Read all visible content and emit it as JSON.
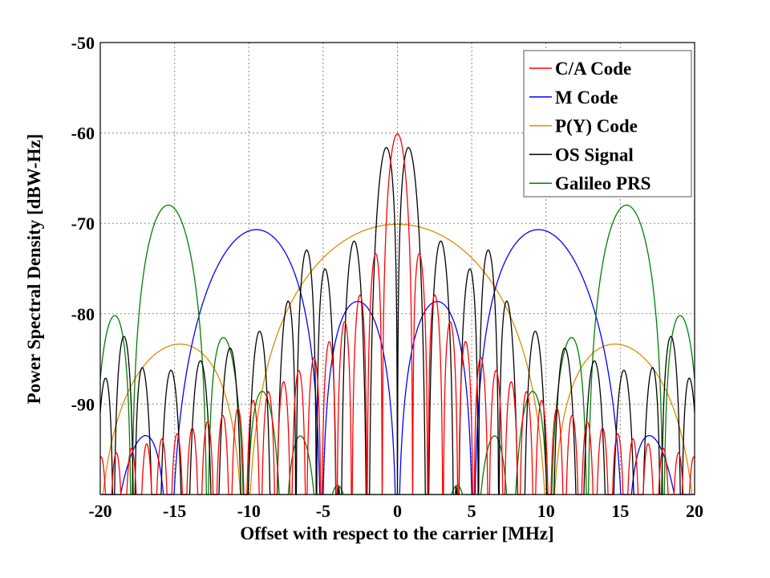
{
  "chart_data": {
    "type": "line",
    "title": "",
    "xlabel": "Offset with respect to the carrier [MHz]",
    "ylabel": "Power Spectral Density [dBW-Hz]",
    "xlim": [
      -20,
      20
    ],
    "ylim": [
      -100,
      -50
    ],
    "xticks": [
      -20,
      -15,
      -10,
      -5,
      0,
      5,
      10,
      15,
      20
    ],
    "yticks": [
      -50,
      -60,
      -70,
      -80,
      -90
    ],
    "grid": true,
    "legend_position": "top-right",
    "series": [
      {
        "name": "C/A Code",
        "color": "#ff0000",
        "main_lobe_peaks": [
          {
            "x": 0,
            "y": -60
          }
        ],
        "first_sidelobe_peak": {
          "x": 1.5,
          "y": -73.5
        }
      },
      {
        "name": "M Code",
        "color": "#0000ff",
        "main_lobe_peaks": [
          {
            "x": -9.5,
            "y": -70.7
          },
          {
            "x": 9.5,
            "y": -70.7
          }
        ],
        "inner_lobe_peaks": [
          {
            "x": -2.5,
            "y": -78.5
          },
          {
            "x": 2.5,
            "y": -78.5
          }
        ]
      },
      {
        "name": "P(Y) Code",
        "color": "#e08a00",
        "main_lobe_peaks": [
          {
            "x": 0,
            "y": -70
          }
        ],
        "first_sidelobe_peak": {
          "x": 14.3,
          "y": -83.3
        }
      },
      {
        "name": "OS Signal",
        "color": "#000000",
        "main_lobe_peaks": [
          {
            "x": -0.9,
            "y": -63.3
          },
          {
            "x": 0.9,
            "y": -63.3
          }
        ],
        "secondary_peaks": [
          {
            "x": -5.5,
            "y": -74.5
          },
          {
            "x": 5.5,
            "y": -74.5
          }
        ]
      },
      {
        "name": "Galileo PRS",
        "color": "#008000",
        "main_lobe_peaks": [
          {
            "x": -14.7,
            "y": -68
          },
          {
            "x": 14.7,
            "y": -68
          }
        ],
        "outer_lobe_peaks": [
          {
            "x": -18.5,
            "y": -80.2
          },
          {
            "x": 18.5,
            "y": -80.2
          }
        ]
      }
    ]
  }
}
